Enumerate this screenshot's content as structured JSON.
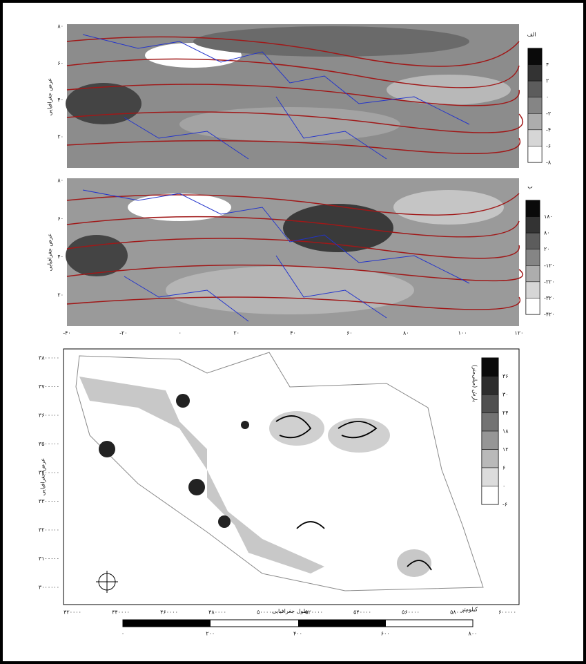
{
  "panel_a": {
    "label": "الف",
    "y_axis_title": "عرض جغرافیایی",
    "yticks": [
      "۸۰",
      "۶۰",
      "۴۰",
      "۲۰"
    ],
    "legend": [
      "۴",
      "۲",
      "۰",
      "-۲",
      "-۴",
      "-۶",
      "-۸"
    ]
  },
  "panel_b": {
    "label": "ب",
    "y_axis_title": "عرض جغرافیایی",
    "yticks": [
      "۸۰",
      "۶۰",
      "۴۰",
      "۲۰"
    ],
    "xticks": [
      "-۴۰",
      "-۲۰",
      "۰",
      "۲۰",
      "۴۰",
      "۶۰",
      "۸۰",
      "۱۰۰",
      "۱۲۰"
    ],
    "legend": [
      "۱۸۰",
      "۸۰",
      "۲۰",
      "-۱۲۰",
      "-۲۲۰",
      "-۳۲۰",
      "-۴۲۰"
    ]
  },
  "panel_c": {
    "y_axis_title": "عرض جغرافیایی",
    "x_axis_title": "طول جغرافیایی",
    "legend_title": "بارش (میلی‌متر)",
    "yticks": [
      "۳۸۰۰۰۰۰",
      "۳۷۰۰۰۰۰",
      "۳۶۰۰۰۰۰",
      "۳۵۰۰۰۰۰",
      "۳۴۰۰۰۰۰",
      "۳۳۰۰۰۰۰",
      "۳۲۰۰۰۰۰",
      "۳۱۰۰۰۰۰",
      "۳۰۰۰۰۰۰"
    ],
    "xticks": [
      "۴۲۰۰۰۰",
      "۴۴۰۰۰۰",
      "۴۶۰۰۰۰",
      "۴۸۰۰۰۰",
      "۵۰۰۰۰۰",
      "۵۲۰۰۰۰",
      "۵۴۰۰۰۰",
      "۵۶۰۰۰۰",
      "۵۸۰۰۰۰",
      "۶۰۰۰۰۰"
    ],
    "legend": [
      "۳۶",
      "۳۰",
      "۲۴",
      "۱۸",
      "۱۲",
      "۶",
      "۰",
      "-۶"
    ]
  },
  "scale_bar": {
    "title": "کیلومتر",
    "ticks": [
      "۰",
      "۲۰۰",
      "۴۰۰",
      "۶۰۰",
      "۸۰۰"
    ]
  }
}
